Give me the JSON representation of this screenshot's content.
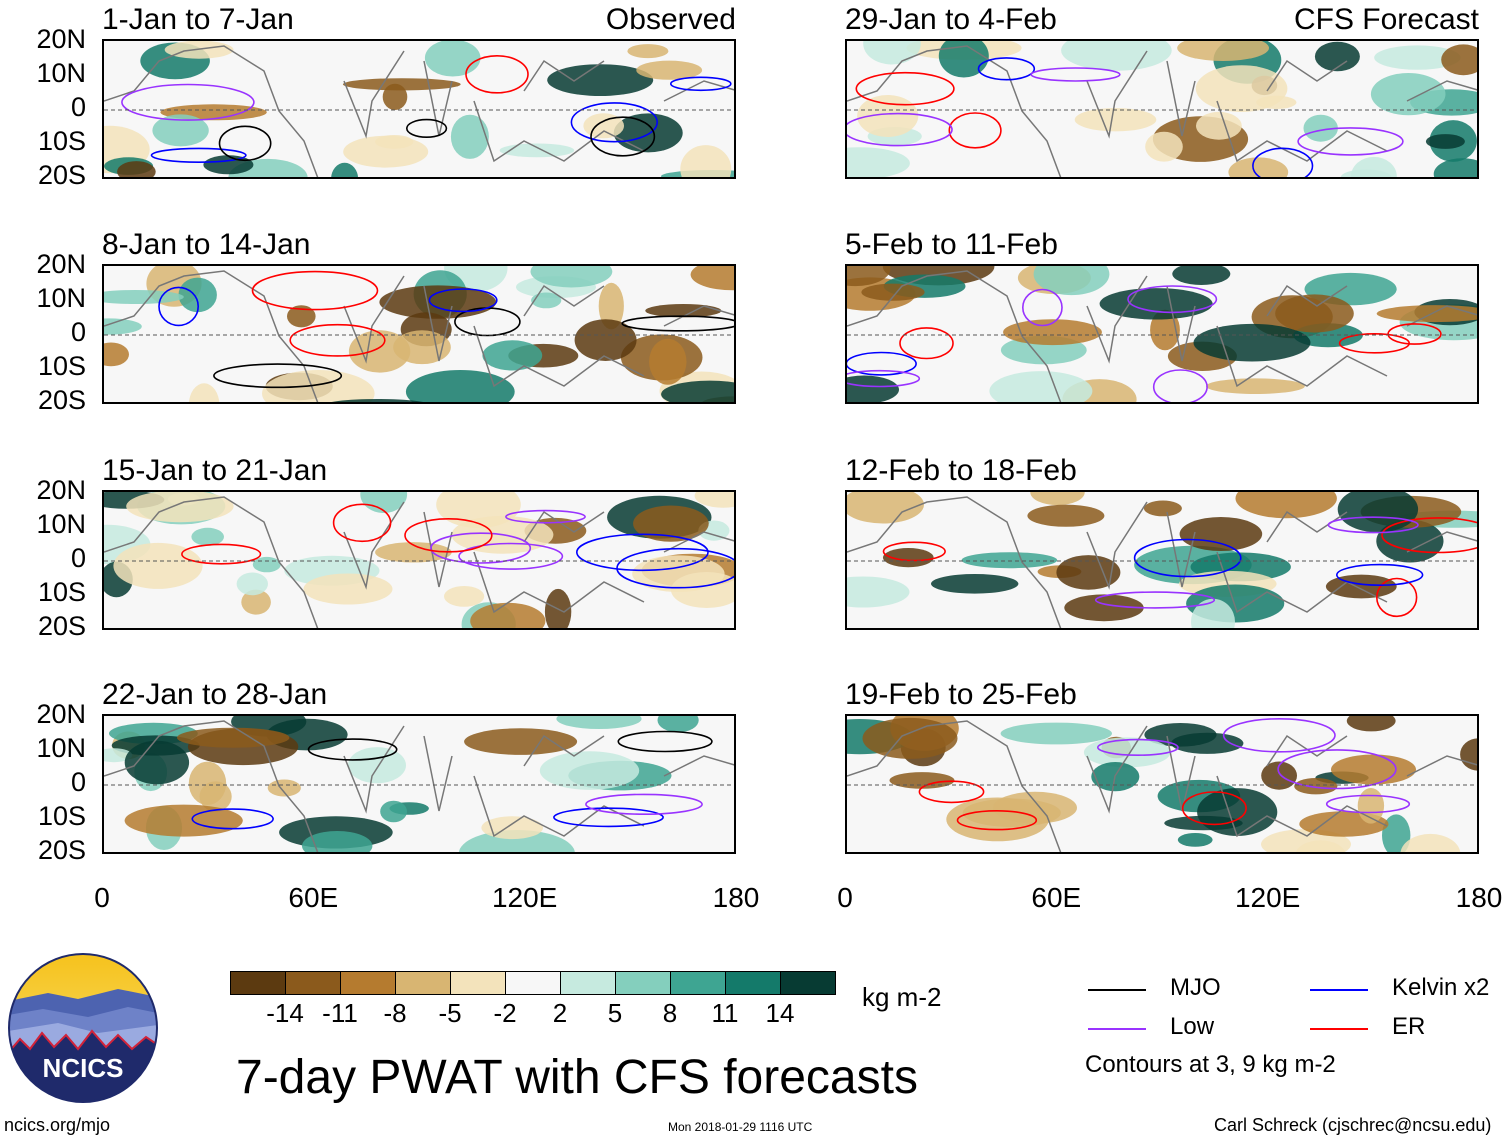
{
  "panels": [
    {
      "title": "1-Jan to 7-Jan",
      "label": "Observed"
    },
    {
      "title": "29-Jan to 4-Feb",
      "label": "CFS Forecast"
    },
    {
      "title": "8-Jan to 14-Jan",
      "label": ""
    },
    {
      "title": "5-Feb to 11-Feb",
      "label": ""
    },
    {
      "title": "15-Jan to 21-Jan",
      "label": ""
    },
    {
      "title": "12-Feb to 18-Feb",
      "label": ""
    },
    {
      "title": "22-Jan to 28-Jan",
      "label": ""
    },
    {
      "title": "19-Feb to 25-Feb",
      "label": ""
    }
  ],
  "lat_labels": [
    "20N",
    "10N",
    "0",
    "10S",
    "20S"
  ],
  "lon_labels": [
    "0",
    "60E",
    "120E",
    "180"
  ],
  "colorbar": {
    "ticks": [
      "-14",
      "-11",
      "-8",
      "-5",
      "-2",
      "2",
      "5",
      "8",
      "11",
      "14"
    ],
    "colors": [
      "#5c3a10",
      "#8b5a1c",
      "#b57b2f",
      "#d8b572",
      "#f3e3bb",
      "#f7f7f7",
      "#c6eadf",
      "#84cfbd",
      "#3ea592",
      "#147a6a",
      "#073b33"
    ],
    "units": "kg m-2"
  },
  "legend": {
    "items": [
      {
        "label": "MJO",
        "color": "#000000"
      },
      {
        "label": "Kelvin x2",
        "color": "#0000ff"
      },
      {
        "label": "Low",
        "color": "#9933ff"
      },
      {
        "label": "ER",
        "color": "#ff0000"
      }
    ],
    "note": "Contours at 3, 9 kg m-2"
  },
  "main_title": "7-day PWAT with CFS forecasts",
  "logo_text": "NCICS",
  "footer": {
    "left": "ncics.org/mjo",
    "center": "Mon 2018-01-29 1116 UTC",
    "right": "Carl Schreck (cjschrec@ncsu.edu)"
  }
}
